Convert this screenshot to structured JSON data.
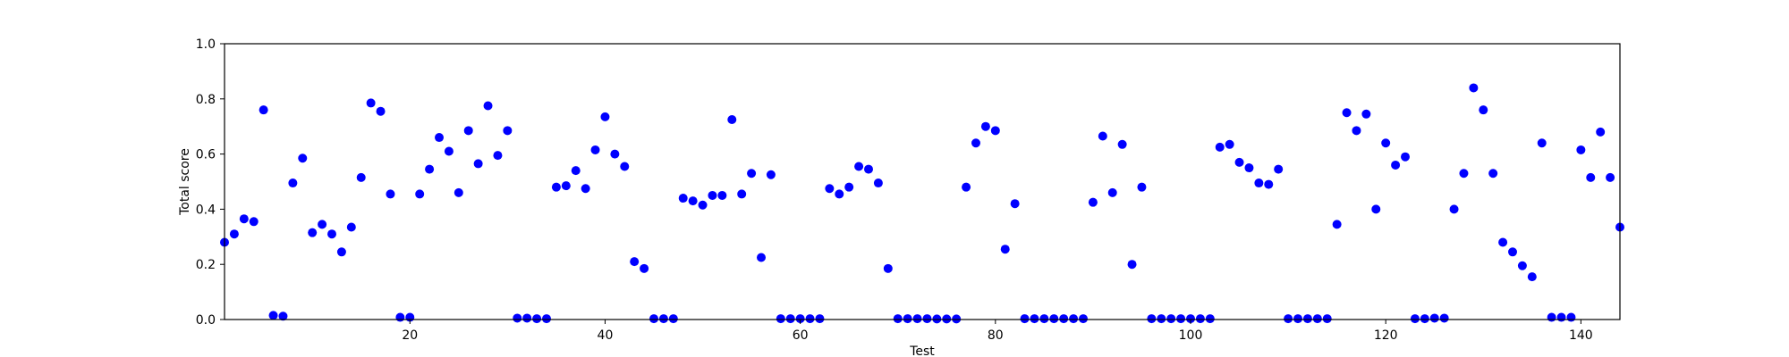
{
  "chart_data": {
    "type": "scatter",
    "title": "",
    "xlabel": "Test",
    "ylabel": "Total score",
    "xlim": [
      1,
      144
    ],
    "ylim": [
      0.0,
      1.0
    ],
    "x_ticks": [
      20,
      40,
      60,
      80,
      100,
      120,
      140
    ],
    "x_tick_labels": [
      "20",
      "40",
      "60",
      "80",
      "100",
      "120",
      "140"
    ],
    "y_ticks": [
      0.0,
      0.2,
      0.4,
      0.6,
      0.8,
      1.0
    ],
    "y_tick_labels": [
      "0.0",
      "0.2",
      "0.4",
      "0.6",
      "0.8",
      "1.0"
    ],
    "grid": false,
    "legend": false,
    "marker_color": "#0000ff",
    "series": [
      {
        "x": [
          1,
          2,
          3,
          4,
          5,
          6,
          7,
          8,
          9,
          10,
          11,
          12,
          13,
          14,
          15,
          16,
          17,
          18,
          19,
          20,
          21,
          22,
          23,
          24,
          25,
          26,
          27,
          28,
          29,
          30,
          31,
          32,
          33,
          34,
          35,
          36,
          37,
          38,
          39,
          40,
          41,
          42,
          43,
          44,
          45,
          46,
          47,
          48,
          49,
          50,
          51,
          52,
          53,
          54,
          55,
          56,
          57,
          58,
          59,
          60,
          61,
          62,
          63,
          64,
          65,
          66,
          67,
          68,
          69,
          70,
          71,
          72,
          73,
          74,
          75,
          76,
          77,
          78,
          79,
          80,
          81,
          82,
          83,
          84,
          85,
          86,
          87,
          88,
          89,
          90,
          91,
          92,
          93,
          94,
          95,
          96,
          97,
          98,
          99,
          100,
          101,
          102,
          103,
          104,
          105,
          106,
          107,
          108,
          109,
          110,
          111,
          112,
          113,
          114,
          115,
          116,
          117,
          118,
          119,
          120,
          121,
          122,
          123,
          124,
          125,
          126,
          127,
          128,
          129,
          130,
          131,
          132,
          133,
          134,
          135,
          136,
          137,
          138,
          139,
          140,
          141,
          142,
          143,
          144
        ],
        "y": [
          0.28,
          0.31,
          0.365,
          0.355,
          0.76,
          0.015,
          0.012,
          0.495,
          0.585,
          0.315,
          0.345,
          0.31,
          0.245,
          0.335,
          0.515,
          0.785,
          0.755,
          0.455,
          0.008,
          0.008,
          0.455,
          0.545,
          0.66,
          0.61,
          0.46,
          0.685,
          0.565,
          0.775,
          0.595,
          0.685,
          0.005,
          0.005,
          0.003,
          0.003,
          0.48,
          0.485,
          0.54,
          0.475,
          0.615,
          0.735,
          0.6,
          0.555,
          0.21,
          0.185,
          0.003,
          0.003,
          0.003,
          0.44,
          0.43,
          0.415,
          0.45,
          0.45,
          0.725,
          0.455,
          0.53,
          0.225,
          0.525,
          0.003,
          0.003,
          0.003,
          0.003,
          0.003,
          0.475,
          0.455,
          0.48,
          0.555,
          0.545,
          0.495,
          0.185,
          0.003,
          0.003,
          0.003,
          0.003,
          0.002,
          0.002,
          0.002,
          0.48,
          0.64,
          0.7,
          0.685,
          0.255,
          0.42,
          0.003,
          0.003,
          0.003,
          0.003,
          0.003,
          0.003,
          0.003,
          0.425,
          0.665,
          0.46,
          0.635,
          0.2,
          0.48,
          0.003,
          0.003,
          0.003,
          0.003,
          0.003,
          0.003,
          0.003,
          0.625,
          0.635,
          0.57,
          0.55,
          0.495,
          0.49,
          0.545,
          0.003,
          0.003,
          0.003,
          0.003,
          0.003,
          0.345,
          0.75,
          0.685,
          0.745,
          0.4,
          0.64,
          0.56,
          0.59,
          0.003,
          0.003,
          0.005,
          0.005,
          0.4,
          0.53,
          0.84,
          0.76,
          0.53,
          0.28,
          0.245,
          0.195,
          0.155,
          0.64,
          0.008,
          0.008,
          0.008,
          0.615,
          0.515,
          0.68,
          0.515,
          0.335
        ]
      }
    ]
  }
}
